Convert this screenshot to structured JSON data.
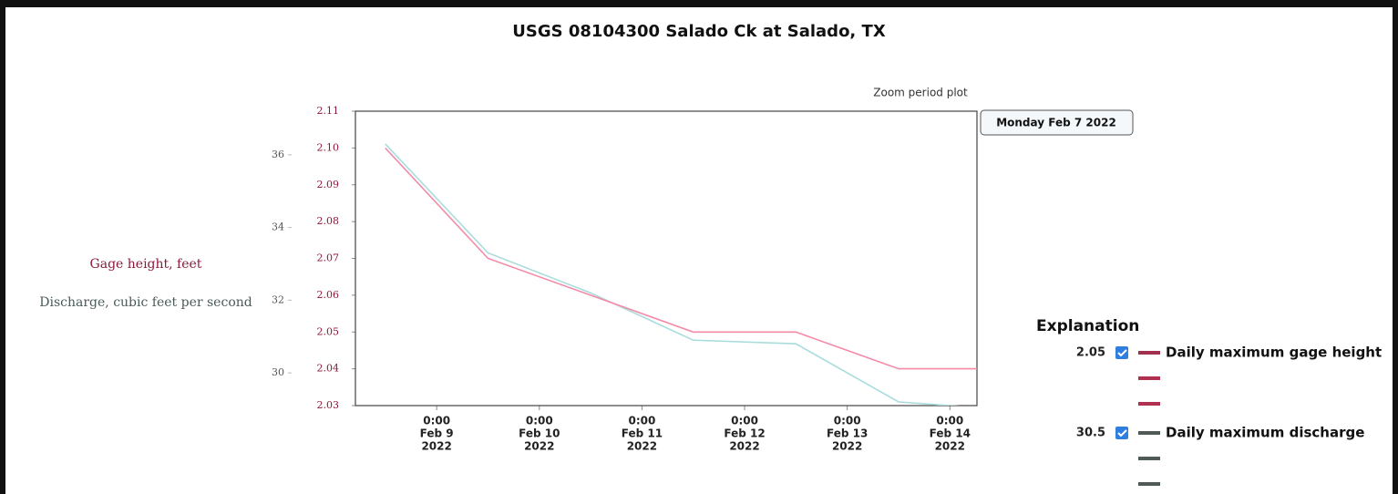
{
  "chart_data": {
    "type": "line",
    "title": "USGS 08104300 Salado Ck at Salado, TX",
    "subtitle": "Zoom period plot",
    "tooltip": "Monday Feb 7 2022",
    "ylabel": "Gage height, feet",
    "y2label": "Discharge, cubic feet per second",
    "legend_title": "Explanation",
    "x": [
      "2022-02-08T12:00",
      "2022-02-09T12:00",
      "2022-02-10T12:00",
      "2022-02-11T12:00",
      "2022-02-12T12:00",
      "2022-02-13T12:00",
      "2022-02-14T12:00"
    ],
    "xlim": [
      "2022-02-08T05:00",
      "2022-02-14T06:20"
    ],
    "xticks": [
      {
        "value": "2022-02-09T00:00",
        "label": [
          "0:00",
          "Feb 9",
          "2022"
        ]
      },
      {
        "value": "2022-02-10T00:00",
        "label": [
          "0:00",
          "Feb 10",
          "2022"
        ]
      },
      {
        "value": "2022-02-11T00:00",
        "label": [
          "0:00",
          "Feb 11",
          "2022"
        ]
      },
      {
        "value": "2022-02-12T00:00",
        "label": [
          "0:00",
          "Feb 12",
          "2022"
        ]
      },
      {
        "value": "2022-02-13T00:00",
        "label": [
          "0:00",
          "Feb 13",
          "2022"
        ]
      },
      {
        "value": "2022-02-14T00:00",
        "label": [
          "0:00",
          "Feb 14",
          "2022"
        ]
      }
    ],
    "ylim": [
      2.03,
      2.11
    ],
    "yticks": [
      2.03,
      2.04,
      2.05,
      2.06,
      2.07,
      2.08,
      2.09,
      {
        "value": 2.1,
        "label": "2.10"
      },
      2.11
    ],
    "y2lim": [
      29.1,
      37.2
    ],
    "y2ticks": [
      30,
      32,
      34,
      36
    ],
    "series": [
      {
        "name": "Daily maximum gage height",
        "legend_value": "2.05",
        "color": "#f48aa6",
        "legend_color": "#a0304e",
        "values": [
          2.1,
          2.07,
          2.06,
          2.05,
          2.05,
          2.04,
          2.04
        ]
      },
      {
        "name": "Daily maximum discharge",
        "legend_value": "30.5",
        "color": "#a9dcdc",
        "legend_color": "#4f5a58",
        "axis": "y2",
        "values": [
          36.3,
          33.3,
          32.2,
          30.9,
          30.8,
          29.2,
          29.0
        ]
      }
    ]
  }
}
